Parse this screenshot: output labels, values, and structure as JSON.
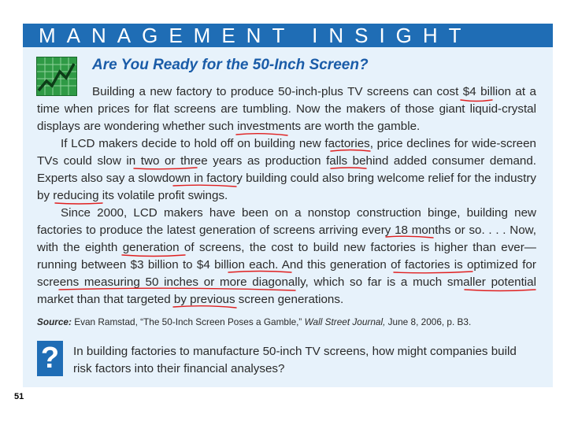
{
  "banner": {
    "title": "MANAGEMENT INSIGHT"
  },
  "icons": {
    "chart": "stock-chart-icon",
    "question": "question-mark-icon"
  },
  "article": {
    "heading": "Are You Ready for the 50-Inch Screen?",
    "paragraphs": [
      "Building a new factory to produce 50-inch-plus TV screens can cost $4 billion at a time when prices for flat screens are tumbling. Now the makers of those giant liquid-crystal displays are wondering whether such investments are worth the gamble.",
      "If LCD makers decide to hold off on building new factories, price declines for wide-screen TVs could slow in two or three years as production falls behind added consumer demand. Experts also say a slowdown in factory building could also bring welcome relief for the industry by reducing its volatile profit swings.",
      "Since 2000, LCD makers have been on a nonstop construction binge, building new factories to produce the latest generation of screens arriving every 18 months or so. . . . Now, with the eighth generation of screens, the cost to build new factories is higher than ever—running between $3 billion to $4 billion each. And this generation of factories is optimized for screens measuring 50 inches or more diagonally, which so far is a much smaller potential market than that targeted by previous screen generations."
    ],
    "source_label": "Source:",
    "source_text": "Evan Ramstad, “The 50-Inch Screen Poses a Gamble,”",
    "source_publication": "Wall Street Journal,",
    "source_date": "June 8, 2006, p. B3."
  },
  "question": {
    "symbol": "?",
    "text": "In building factories to manufacture 50-inch TV screens, how might companies build risk factors into their financial analyses?"
  },
  "page": {
    "number": "51"
  },
  "colors": {
    "banner": "#1f6db5",
    "box": "#e7f2fb",
    "heading": "#1a5ca8",
    "annotation": "#e02020",
    "chart_icon": "#2f9a45"
  }
}
